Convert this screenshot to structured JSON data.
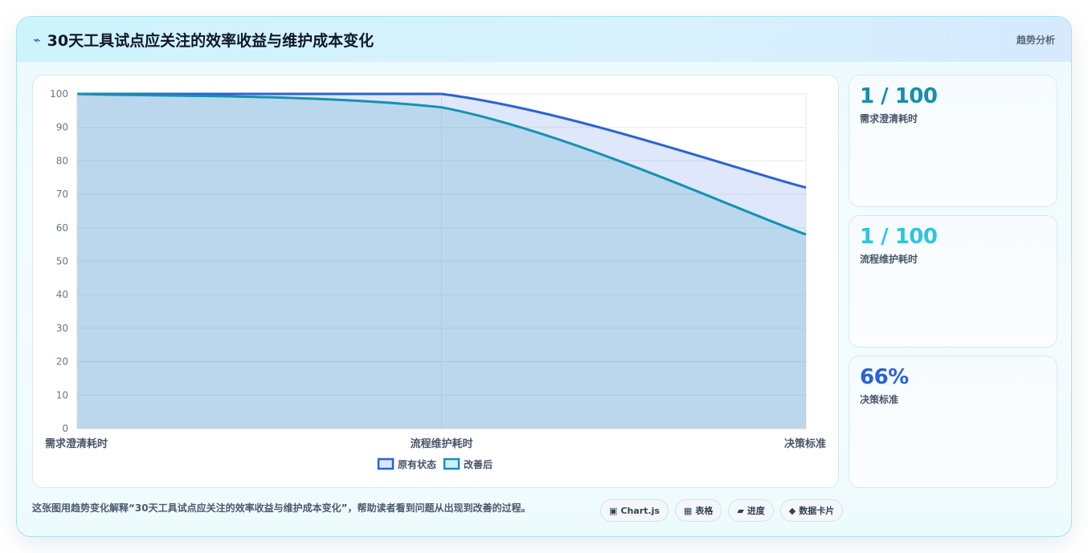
{
  "header": {
    "icon": "bolt-icon",
    "title": "30天工具试点应关注的效率收益与维护成本变化",
    "tag": "趋势分析"
  },
  "chart_data": {
    "type": "area",
    "categories": [
      "需求澄清耗时",
      "流程维护耗时",
      "决策标准"
    ],
    "series": [
      {
        "name": "原有状态",
        "values": [
          100,
          100,
          72
        ],
        "color": "#2a62d8"
      },
      {
        "name": "改善后",
        "values": [
          100,
          96,
          58
        ],
        "color": "#1592b0"
      }
    ],
    "ylim": [
      0,
      100
    ],
    "yticks": [
      0,
      10,
      20,
      30,
      40,
      50,
      60,
      70,
      80,
      90,
      100
    ],
    "grid": true,
    "legend": "bottom"
  },
  "kpis": [
    {
      "value": "1 / 100",
      "label": "需求澄清耗时",
      "color": "#138fab"
    },
    {
      "value": "1 / 100",
      "label": "流程维护耗时",
      "color": "#2ec4e0"
    },
    {
      "value": "66%",
      "label": "决策标准",
      "color": "#2a62d8"
    }
  ],
  "footer": {
    "caption": "这张图用趋势变化解释“30天工具试点应关注的效率收益与维护成本变化”，帮助读者看到问题从出现到改善的过程。",
    "chips": [
      {
        "icon": "▣",
        "label": "Chart.js"
      },
      {
        "icon": "▦",
        "label": "表格"
      },
      {
        "icon": "▰",
        "label": "进度"
      },
      {
        "icon": "◆",
        "label": "数据卡片"
      }
    ]
  }
}
